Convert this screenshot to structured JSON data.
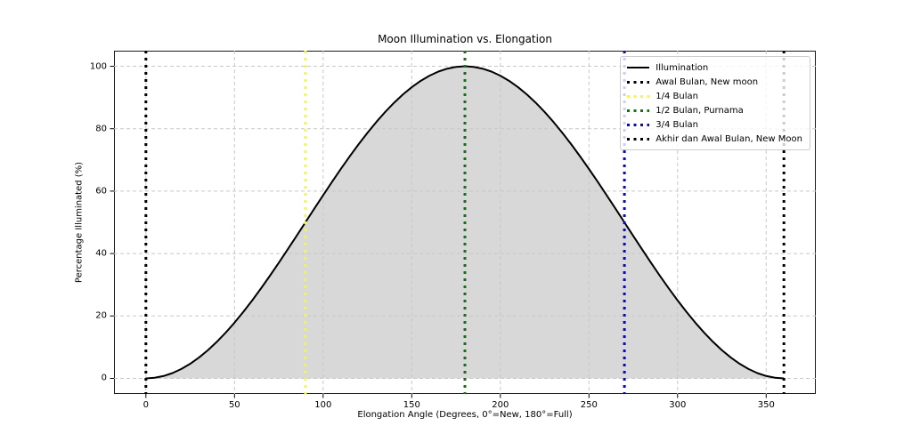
{
  "chart_data": {
    "type": "line",
    "title": "Moon Illumination vs. Elongation",
    "xlabel": "Elongation Angle (Degrees, 0°=New, 180°=Full)",
    "ylabel": "Percentage Illuminated (%)",
    "xlim": [
      -18,
      378
    ],
    "ylim": [
      -5,
      105
    ],
    "xticks": [
      0,
      50,
      100,
      150,
      200,
      250,
      300,
      350
    ],
    "yticks": [
      0,
      20,
      40,
      60,
      80,
      100
    ],
    "grid": true,
    "grid_color": "#c8c8c8",
    "background": "#ffffff",
    "spine_color": "#1a1a1a",
    "series": [
      {
        "name": "Illumination",
        "color": "#000000",
        "line_style": "solid",
        "line_width": 2,
        "fill_color": "#d8d8d8",
        "x": [
          0,
          5,
          10,
          15,
          20,
          25,
          30,
          35,
          40,
          45,
          50,
          55,
          60,
          65,
          70,
          75,
          80,
          85,
          90,
          95,
          100,
          105,
          110,
          115,
          120,
          125,
          130,
          135,
          140,
          145,
          150,
          155,
          160,
          165,
          170,
          175,
          180,
          185,
          190,
          195,
          200,
          205,
          210,
          215,
          220,
          225,
          230,
          235,
          240,
          245,
          250,
          255,
          260,
          265,
          270,
          275,
          280,
          285,
          290,
          295,
          300,
          305,
          310,
          315,
          320,
          325,
          330,
          335,
          340,
          345,
          350,
          355,
          360
        ],
        "y": [
          0,
          0.19,
          0.76,
          1.7,
          3.02,
          4.68,
          6.7,
          9.04,
          11.7,
          14.64,
          17.86,
          21.32,
          25,
          28.87,
          32.9,
          37.06,
          41.32,
          45.64,
          50,
          54.36,
          58.68,
          62.94,
          67.1,
          71.13,
          75,
          78.68,
          82.14,
          85.36,
          88.3,
          90.96,
          93.3,
          95.32,
          96.98,
          98.3,
          99.24,
          99.81,
          100,
          99.81,
          99.24,
          98.3,
          96.98,
          95.32,
          93.3,
          90.96,
          88.3,
          85.36,
          82.14,
          78.68,
          75,
          71.13,
          67.1,
          62.94,
          58.68,
          54.36,
          50,
          45.64,
          41.32,
          37.06,
          32.9,
          28.87,
          25,
          21.32,
          17.86,
          14.64,
          11.7,
          9.04,
          6.7,
          4.68,
          3.02,
          1.7,
          0.76,
          0.19,
          0
        ]
      }
    ],
    "vlines": [
      {
        "x": 0,
        "label": "Awal Bulan, New moon",
        "color": "#000000",
        "style": "dotted",
        "width": 3
      },
      {
        "x": 90,
        "label": "1/4 Bulan",
        "color": "#ffff00",
        "style": "dotted",
        "width": 3
      },
      {
        "x": 180,
        "label": "1/2 Bulan, Purnama",
        "color": "#008000",
        "style": "dotted",
        "width": 3
      },
      {
        "x": 270,
        "label": "3/4 Bulan",
        "color": "#0000ff",
        "style": "dotted",
        "width": 3
      },
      {
        "x": 360,
        "label": "Akhir dan Awal Bulan, New Moon",
        "color": "#000000",
        "style": "dotted",
        "width": 3
      }
    ],
    "legend": {
      "position": "upper right",
      "entries": [
        {
          "label": "Illumination",
          "color": "#000000",
          "style": "solid"
        },
        {
          "label": "Awal Bulan, New moon",
          "color": "#000000",
          "style": "dotted"
        },
        {
          "label": "1/4 Bulan",
          "color": "#ffff00",
          "style": "dotted"
        },
        {
          "label": "1/2 Bulan, Purnama",
          "color": "#008000",
          "style": "dotted"
        },
        {
          "label": "3/4 Bulan",
          "color": "#0000ff",
          "style": "dotted"
        },
        {
          "label": "Akhir dan Awal Bulan, New Moon",
          "color": "#000000",
          "style": "dotted"
        }
      ]
    }
  }
}
